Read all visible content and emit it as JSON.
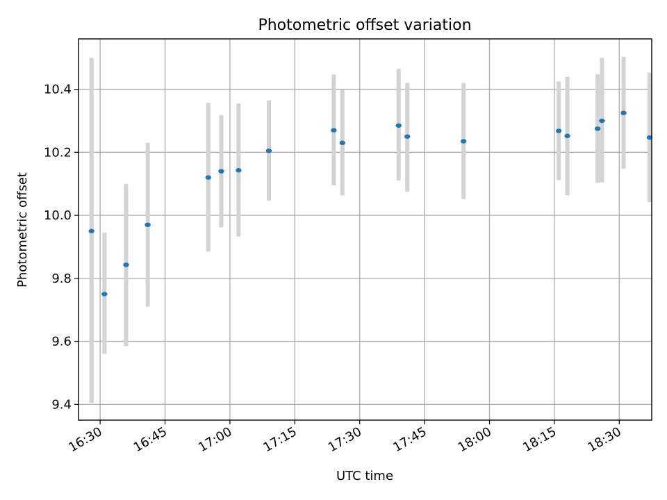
{
  "chart_data": {
    "type": "scatter",
    "title": "Photometric offset variation",
    "xlabel": "UTC time",
    "ylabel": "Photometric offset",
    "x_axis_type": "time",
    "xlim": [
      "16:25",
      "18:34"
    ],
    "ylim": [
      9.35,
      10.56
    ],
    "x_ticks": [
      "16:30",
      "16:45",
      "17:00",
      "17:15",
      "17:30",
      "17:45",
      "18:00",
      "18:15",
      "18:30"
    ],
    "y_ticks": [
      "9.4",
      "9.6",
      "9.8",
      "10.0",
      "10.2",
      "10.4"
    ],
    "grid": true,
    "point_color": "#1f77b4",
    "errorbar_color": "#d3d3d3",
    "series": [
      {
        "points": [
          {
            "x": "16:28",
            "y": 9.95,
            "ylow": 9.405,
            "yhigh": 10.5
          },
          {
            "x": "16:31",
            "y": 9.75,
            "ylow": 9.56,
            "yhigh": 9.945
          },
          {
            "x": "16:36",
            "y": 9.843,
            "ylow": 9.585,
            "yhigh": 10.1
          },
          {
            "x": "16:41",
            "y": 9.97,
            "ylow": 9.71,
            "yhigh": 10.23
          },
          {
            "x": "16:55",
            "y": 10.12,
            "ylow": 9.885,
            "yhigh": 10.357
          },
          {
            "x": "16:58",
            "y": 10.14,
            "ylow": 9.962,
            "yhigh": 10.318
          },
          {
            "x": "17:02",
            "y": 10.143,
            "ylow": 9.933,
            "yhigh": 10.355
          },
          {
            "x": "17:09",
            "y": 10.205,
            "ylow": 10.047,
            "yhigh": 10.365
          },
          {
            "x": "17:24",
            "y": 10.27,
            "ylow": 10.095,
            "yhigh": 10.447
          },
          {
            "x": "17:26",
            "y": 10.23,
            "ylow": 10.063,
            "yhigh": 10.398
          },
          {
            "x": "17:39",
            "y": 10.285,
            "ylow": 10.11,
            "yhigh": 10.465
          },
          {
            "x": "17:41",
            "y": 10.25,
            "ylow": 10.075,
            "yhigh": 10.42
          },
          {
            "x": "17:54",
            "y": 10.235,
            "ylow": 10.052,
            "yhigh": 10.42
          },
          {
            "x": "18:16",
            "y": 10.268,
            "ylow": 10.112,
            "yhigh": 10.425
          },
          {
            "x": "18:18",
            "y": 10.252,
            "ylow": 10.063,
            "yhigh": 10.44
          },
          {
            "x": "18:25",
            "y": 10.275,
            "ylow": 10.103,
            "yhigh": 10.448
          },
          {
            "x": "18:26",
            "y": 10.3,
            "ylow": 10.105,
            "yhigh": 10.5
          },
          {
            "x": "18:31",
            "y": 10.325,
            "ylow": 10.148,
            "yhigh": 10.503
          },
          {
            "x": "18:37",
            "y": 10.247,
            "ylow": 10.042,
            "yhigh": 10.453
          }
        ]
      }
    ]
  }
}
